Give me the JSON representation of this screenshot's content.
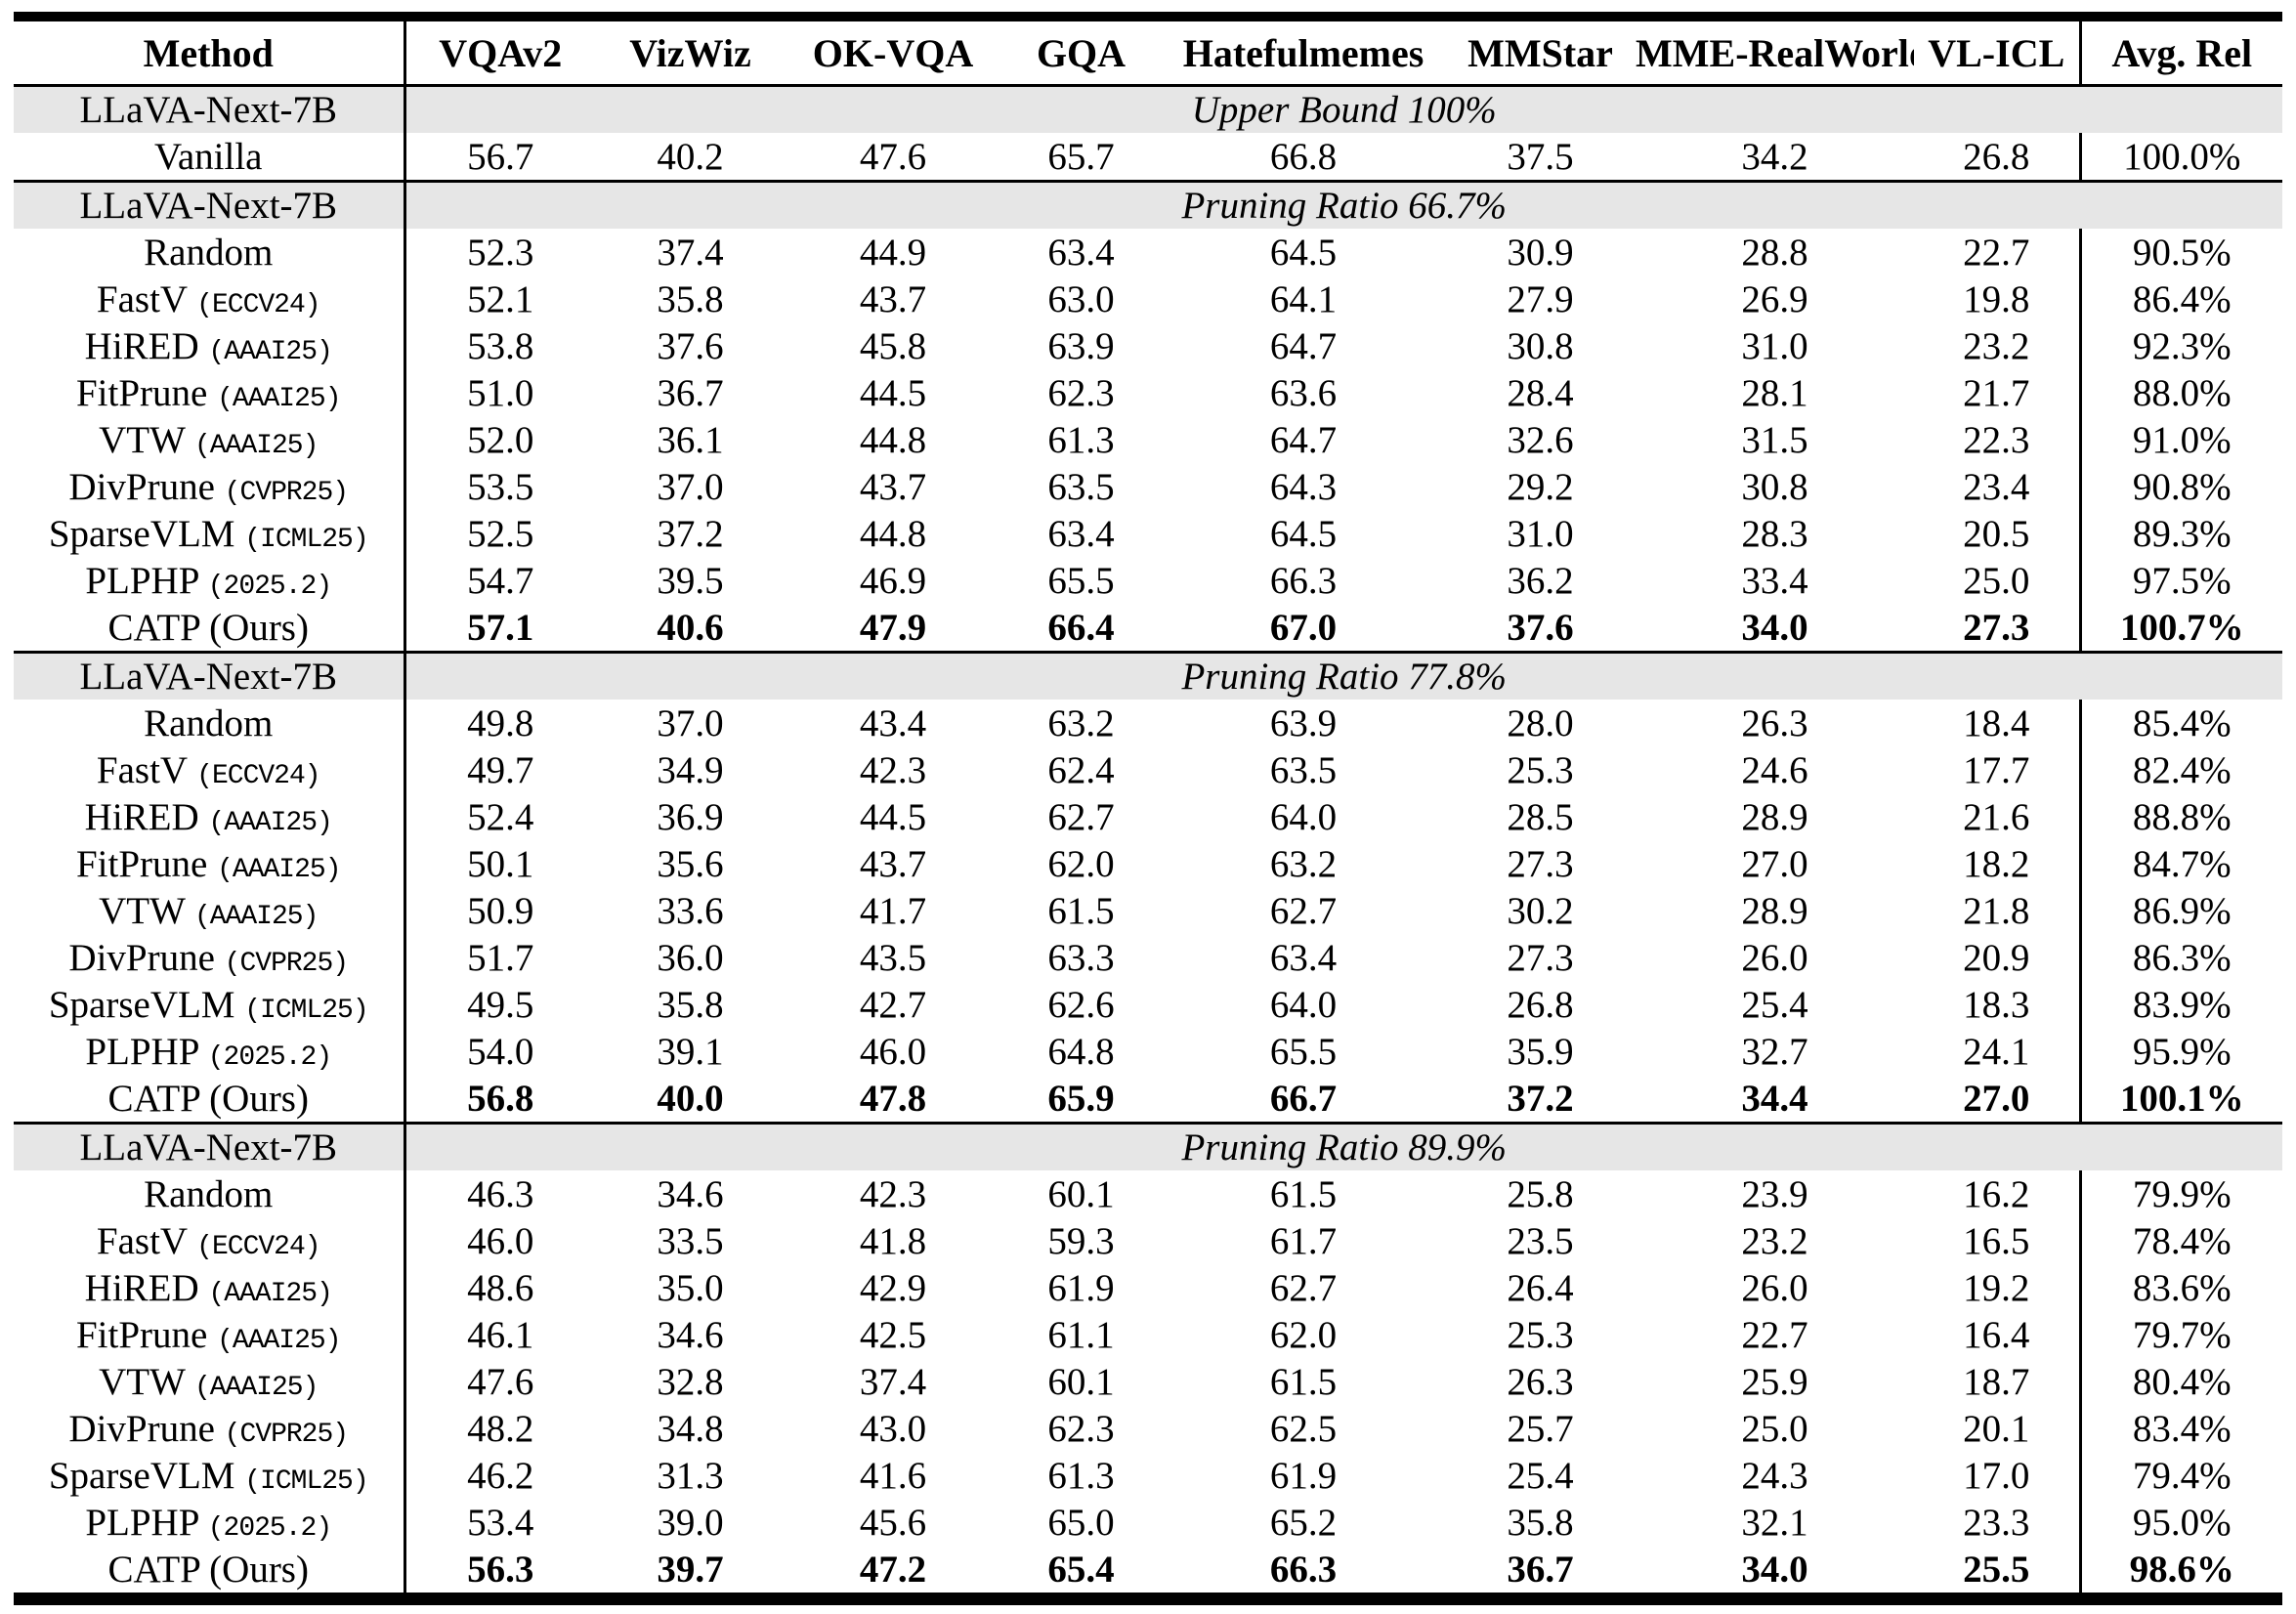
{
  "table": {
    "columns": [
      "Method",
      "VQAv2",
      "VizWiz",
      "OK-VQA",
      "GQA",
      "Hatefulmemes",
      "MMStar",
      "MME-RealWorld",
      "VL-ICL",
      "Avg. Rel"
    ],
    "colors": {
      "band_background": "#e6e6e6",
      "text": "#000000"
    },
    "sections": [
      {
        "model": "LLaVA-Next-7B",
        "band_title": "Upper Bound 100%",
        "rows": [
          {
            "method": "Vanilla",
            "tag": "",
            "bold": false,
            "values": [
              "56.7",
              "40.2",
              "47.6",
              "65.7",
              "66.8",
              "37.5",
              "34.2",
              "26.8"
            ],
            "avg": "100.0%"
          }
        ]
      },
      {
        "model": "LLaVA-Next-7B",
        "band_title": "Pruning Ratio 66.7%",
        "rows": [
          {
            "method": "Random",
            "tag": "",
            "bold": false,
            "values": [
              "52.3",
              "37.4",
              "44.9",
              "63.4",
              "64.5",
              "30.9",
              "28.8",
              "22.7"
            ],
            "avg": "90.5%"
          },
          {
            "method": "FastV",
            "tag": "(ECCV24)",
            "bold": false,
            "values": [
              "52.1",
              "35.8",
              "43.7",
              "63.0",
              "64.1",
              "27.9",
              "26.9",
              "19.8"
            ],
            "avg": "86.4%"
          },
          {
            "method": "HiRED",
            "tag": "(AAAI25)",
            "bold": false,
            "values": [
              "53.8",
              "37.6",
              "45.8",
              "63.9",
              "64.7",
              "30.8",
              "31.0",
              "23.2"
            ],
            "avg": "92.3%"
          },
          {
            "method": "FitPrune",
            "tag": "(AAAI25)",
            "bold": false,
            "values": [
              "51.0",
              "36.7",
              "44.5",
              "62.3",
              "63.6",
              "28.4",
              "28.1",
              "21.7"
            ],
            "avg": "88.0%"
          },
          {
            "method": "VTW",
            "tag": "(AAAI25)",
            "bold": false,
            "values": [
              "52.0",
              "36.1",
              "44.8",
              "61.3",
              "64.7",
              "32.6",
              "31.5",
              "22.3"
            ],
            "avg": "91.0%"
          },
          {
            "method": "DivPrune",
            "tag": "(CVPR25)",
            "bold": false,
            "values": [
              "53.5",
              "37.0",
              "43.7",
              "63.5",
              "64.3",
              "29.2",
              "30.8",
              "23.4"
            ],
            "avg": "90.8%"
          },
          {
            "method": "SparseVLM",
            "tag": "(ICML25)",
            "bold": false,
            "values": [
              "52.5",
              "37.2",
              "44.8",
              "63.4",
              "64.5",
              "31.0",
              "28.3",
              "20.5"
            ],
            "avg": "89.3%"
          },
          {
            "method": "PLPHP",
            "tag": "(2025.2)",
            "bold": false,
            "values": [
              "54.7",
              "39.5",
              "46.9",
              "65.5",
              "66.3",
              "36.2",
              "33.4",
              "25.0"
            ],
            "avg": "97.5%"
          },
          {
            "method": "CATP (Ours)",
            "tag": "",
            "bold": true,
            "values": [
              "57.1",
              "40.6",
              "47.9",
              "66.4",
              "67.0",
              "37.6",
              "34.0",
              "27.3"
            ],
            "avg": "100.7%"
          }
        ]
      },
      {
        "model": "LLaVA-Next-7B",
        "band_title": "Pruning Ratio 77.8%",
        "rows": [
          {
            "method": "Random",
            "tag": "",
            "bold": false,
            "values": [
              "49.8",
              "37.0",
              "43.4",
              "63.2",
              "63.9",
              "28.0",
              "26.3",
              "18.4"
            ],
            "avg": "85.4%"
          },
          {
            "method": "FastV",
            "tag": "(ECCV24)",
            "bold": false,
            "values": [
              "49.7",
              "34.9",
              "42.3",
              "62.4",
              "63.5",
              "25.3",
              "24.6",
              "17.7"
            ],
            "avg": "82.4%"
          },
          {
            "method": "HiRED",
            "tag": "(AAAI25)",
            "bold": false,
            "values": [
              "52.4",
              "36.9",
              "44.5",
              "62.7",
              "64.0",
              "28.5",
              "28.9",
              "21.6"
            ],
            "avg": "88.8%"
          },
          {
            "method": "FitPrune",
            "tag": "(AAAI25)",
            "bold": false,
            "values": [
              "50.1",
              "35.6",
              "43.7",
              "62.0",
              "63.2",
              "27.3",
              "27.0",
              "18.2"
            ],
            "avg": "84.7%"
          },
          {
            "method": "VTW",
            "tag": "(AAAI25)",
            "bold": false,
            "values": [
              "50.9",
              "33.6",
              "41.7",
              "61.5",
              "62.7",
              "30.2",
              "28.9",
              "21.8"
            ],
            "avg": "86.9%"
          },
          {
            "method": "DivPrune",
            "tag": "(CVPR25)",
            "bold": false,
            "values": [
              "51.7",
              "36.0",
              "43.5",
              "63.3",
              "63.4",
              "27.3",
              "26.0",
              "20.9"
            ],
            "avg": "86.3%"
          },
          {
            "method": "SparseVLM",
            "tag": "(ICML25)",
            "bold": false,
            "values": [
              "49.5",
              "35.8",
              "42.7",
              "62.6",
              "64.0",
              "26.8",
              "25.4",
              "18.3"
            ],
            "avg": "83.9%"
          },
          {
            "method": "PLPHP",
            "tag": "(2025.2)",
            "bold": false,
            "values": [
              "54.0",
              "39.1",
              "46.0",
              "64.8",
              "65.5",
              "35.9",
              "32.7",
              "24.1"
            ],
            "avg": "95.9%"
          },
          {
            "method": "CATP (Ours)",
            "tag": "",
            "bold": true,
            "values": [
              "56.8",
              "40.0",
              "47.8",
              "65.9",
              "66.7",
              "37.2",
              "34.4",
              "27.0"
            ],
            "avg": "100.1%"
          }
        ]
      },
      {
        "model": "LLaVA-Next-7B",
        "band_title": "Pruning Ratio 89.9%",
        "rows": [
          {
            "method": "Random",
            "tag": "",
            "bold": false,
            "values": [
              "46.3",
              "34.6",
              "42.3",
              "60.1",
              "61.5",
              "25.8",
              "23.9",
              "16.2"
            ],
            "avg": "79.9%"
          },
          {
            "method": "FastV",
            "tag": "(ECCV24)",
            "bold": false,
            "values": [
              "46.0",
              "33.5",
              "41.8",
              "59.3",
              "61.7",
              "23.5",
              "23.2",
              "16.5"
            ],
            "avg": "78.4%"
          },
          {
            "method": "HiRED",
            "tag": "(AAAI25)",
            "bold": false,
            "values": [
              "48.6",
              "35.0",
              "42.9",
              "61.9",
              "62.7",
              "26.4",
              "26.0",
              "19.2"
            ],
            "avg": "83.6%"
          },
          {
            "method": "FitPrune",
            "tag": "(AAAI25)",
            "bold": false,
            "values": [
              "46.1",
              "34.6",
              "42.5",
              "61.1",
              "62.0",
              "25.3",
              "22.7",
              "16.4"
            ],
            "avg": "79.7%"
          },
          {
            "method": "VTW",
            "tag": "(AAAI25)",
            "bold": false,
            "values": [
              "47.6",
              "32.8",
              "37.4",
              "60.1",
              "61.5",
              "26.3",
              "25.9",
              "18.7"
            ],
            "avg": "80.4%"
          },
          {
            "method": "DivPrune",
            "tag": "(CVPR25)",
            "bold": false,
            "values": [
              "48.2",
              "34.8",
              "43.0",
              "62.3",
              "62.5",
              "25.7",
              "25.0",
              "20.1"
            ],
            "avg": "83.4%"
          },
          {
            "method": "SparseVLM",
            "tag": "(ICML25)",
            "bold": false,
            "values": [
              "46.2",
              "31.3",
              "41.6",
              "61.3",
              "61.9",
              "25.4",
              "24.3",
              "17.0"
            ],
            "avg": "79.4%"
          },
          {
            "method": "PLPHP",
            "tag": "(2025.2)",
            "bold": false,
            "values": [
              "53.4",
              "39.0",
              "45.6",
              "65.0",
              "65.2",
              "35.8",
              "32.1",
              "23.3"
            ],
            "avg": "95.0%"
          },
          {
            "method": "CATP (Ours)",
            "tag": "",
            "bold": true,
            "values": [
              "56.3",
              "39.7",
              "47.2",
              "65.4",
              "66.3",
              "36.7",
              "34.0",
              "25.5"
            ],
            "avg": "98.6%"
          }
        ]
      }
    ]
  }
}
